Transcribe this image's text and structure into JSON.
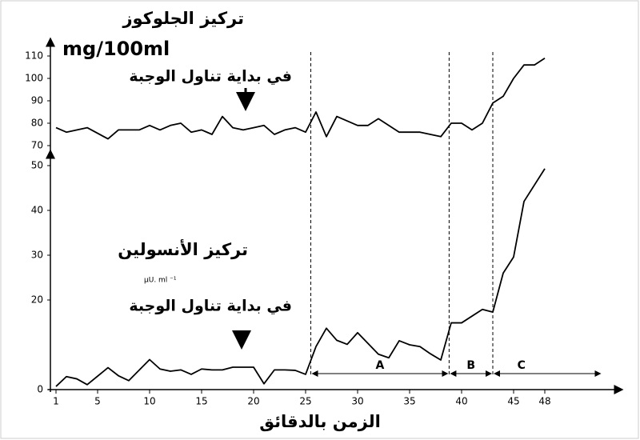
{
  "chart_data": [
    {
      "type": "line",
      "title": "تركيز الجلوكوز",
      "unit": "mg/100ml",
      "annotation": "في بداية تناول الوجبة",
      "x": [
        1,
        2,
        4,
        6,
        7,
        9,
        10,
        11,
        12,
        13,
        14,
        15,
        16,
        17,
        18,
        19,
        20,
        21,
        22,
        23,
        24,
        25,
        26,
        27,
        28,
        30,
        31,
        32,
        34,
        35,
        36,
        37,
        38,
        39,
        40,
        41,
        42,
        43,
        44,
        45,
        46,
        47,
        48
      ],
      "values": [
        78,
        76,
        78,
        73,
        77,
        77,
        79,
        77,
        79,
        80,
        76,
        77,
        75,
        83,
        78,
        77,
        78,
        79,
        75,
        77,
        78,
        76,
        85,
        74,
        83,
        79,
        79,
        82,
        76,
        76,
        76,
        75,
        74,
        80,
        80,
        77,
        80,
        89,
        92,
        100,
        106,
        106,
        109
      ],
      "color": "#000000",
      "xlim": [
        0,
        55
      ],
      "ylim": [
        70,
        110
      ],
      "yticks": [
        70,
        80,
        90,
        100,
        110
      ]
    },
    {
      "type": "line",
      "title": "تركيز الأنسولين",
      "unit": "μU. ml ⁻¹",
      "annotation": "في بداية تناول الوجبة",
      "xlabel": "الزمن بالدقائق",
      "x": [
        1,
        2,
        3,
        4,
        6,
        7,
        8,
        10,
        11,
        12,
        13,
        14,
        15,
        16,
        17,
        18,
        19,
        20,
        21,
        22,
        23,
        24,
        25,
        26,
        27,
        28,
        29,
        30,
        32,
        33,
        34,
        35,
        36,
        37,
        38,
        39,
        40,
        42,
        43,
        44,
        45,
        46,
        48
      ],
      "values": [
        0.7,
        2.9,
        2.4,
        1.1,
        4.9,
        3.1,
        2,
        6.7,
        4.6,
        4.1,
        4.4,
        3.4,
        4.6,
        4.4,
        4.4,
        5,
        5,
        5,
        1.3,
        4.4,
        4.4,
        4.3,
        3.4,
        9.6,
        13.7,
        11,
        10.1,
        12.7,
        7.9,
        7.1,
        10.9,
        10,
        9.6,
        8,
        6.6,
        14.9,
        14.9,
        17.9,
        17.3,
        26,
        29.6,
        42,
        49.3
      ],
      "color": "#000000",
      "xlim": [
        0,
        55
      ],
      "ylim": [
        0,
        50
      ],
      "yticks": [
        0,
        20,
        30,
        40,
        50
      ],
      "xticks": [
        1,
        5,
        10,
        15,
        20,
        25,
        30,
        35,
        40,
        45,
        48
      ],
      "phases": [
        {
          "label": "A",
          "from": 25.5,
          "to": 38.8
        },
        {
          "label": "B",
          "from": 38.8,
          "to": 43
        },
        {
          "label": "C",
          "from": 43,
          "to": 53.5
        }
      ]
    }
  ]
}
